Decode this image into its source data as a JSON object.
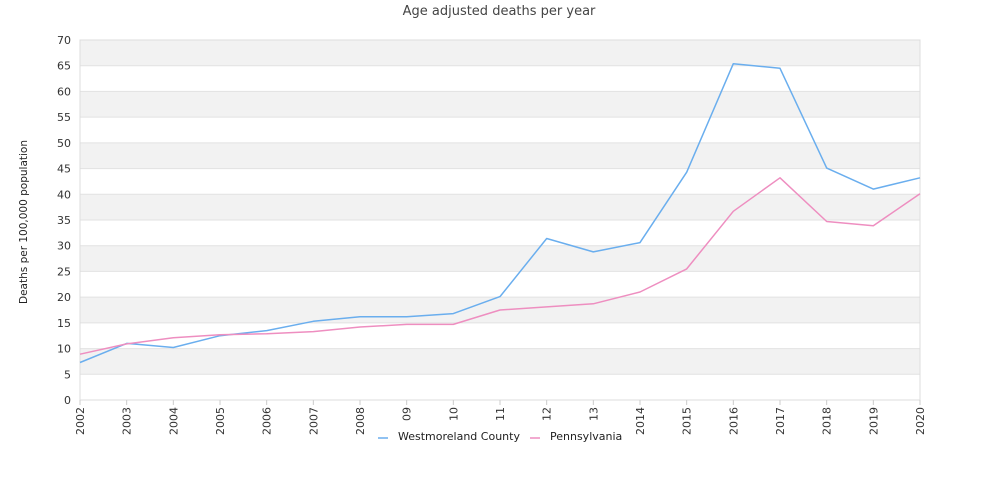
{
  "chart_data": {
    "type": "line",
    "title": "Age adjusted deaths per year",
    "xlabel": "",
    "ylabel": "Deaths per 100,000 population",
    "categories": [
      "2002",
      "2003",
      "2004",
      "2005",
      "2006",
      "2007",
      "2008",
      "09",
      "10",
      "11",
      "12",
      "13",
      "2014",
      "2015",
      "2016",
      "2017",
      "2018",
      "2019",
      "2020"
    ],
    "ylim": [
      0,
      70
    ],
    "yticks": [
      0,
      5,
      10,
      15,
      20,
      25,
      30,
      35,
      40,
      45,
      50,
      55,
      60,
      65,
      70
    ],
    "grid": "horizontal alternating bands",
    "legend_position": "bottom",
    "series": [
      {
        "name": "Westmoreland County",
        "color": "#6aaeee",
        "values": [
          7.3,
          11.0,
          10.2,
          12.5,
          13.5,
          15.3,
          16.2,
          16.2,
          16.8,
          20.1,
          31.4,
          28.8,
          30.6,
          44.3,
          65.4,
          64.5,
          45.1,
          41.0,
          43.2
        ]
      },
      {
        "name": "Pennsylvania",
        "color": "#ee8ec0",
        "values": [
          8.9,
          10.9,
          12.1,
          12.7,
          12.9,
          13.3,
          14.2,
          14.7,
          14.7,
          17.5,
          18.1,
          18.7,
          21.0,
          25.5,
          36.7,
          43.2,
          34.7,
          33.9,
          40.1
        ]
      }
    ]
  }
}
